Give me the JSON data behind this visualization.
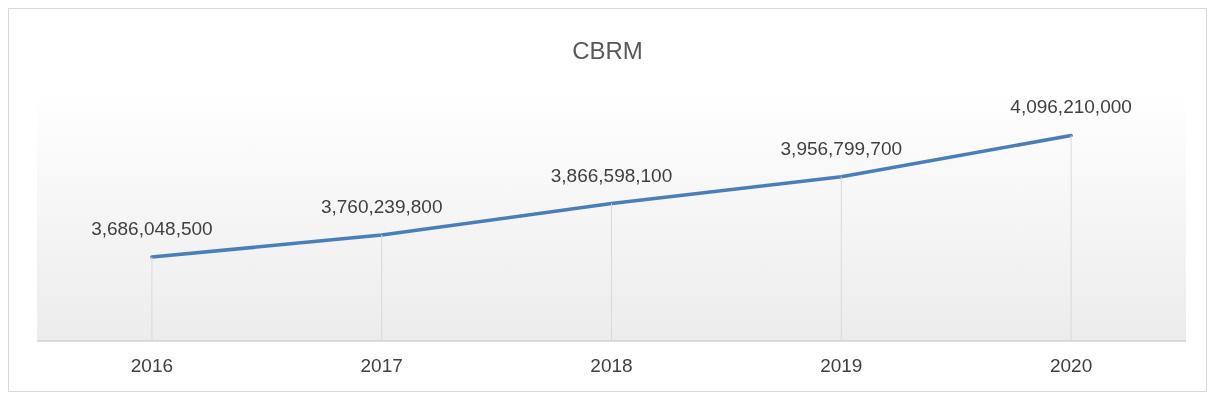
{
  "chart_data": {
    "type": "line",
    "title": "CBRM",
    "categories": [
      "2016",
      "2017",
      "2018",
      "2019",
      "2020"
    ],
    "series": [
      {
        "color": "#4a7ebb",
        "values": [
          3686048500,
          3760239800,
          3866598100,
          3956799700,
          4096210000
        ],
        "value_labels": [
          "3,686,048,500",
          "3,760,239,800",
          "3,866,598,100",
          "3,956,799,700",
          "4,096,210,000"
        ]
      }
    ],
    "grid": "x",
    "marker": "none",
    "line_style": "solid"
  }
}
